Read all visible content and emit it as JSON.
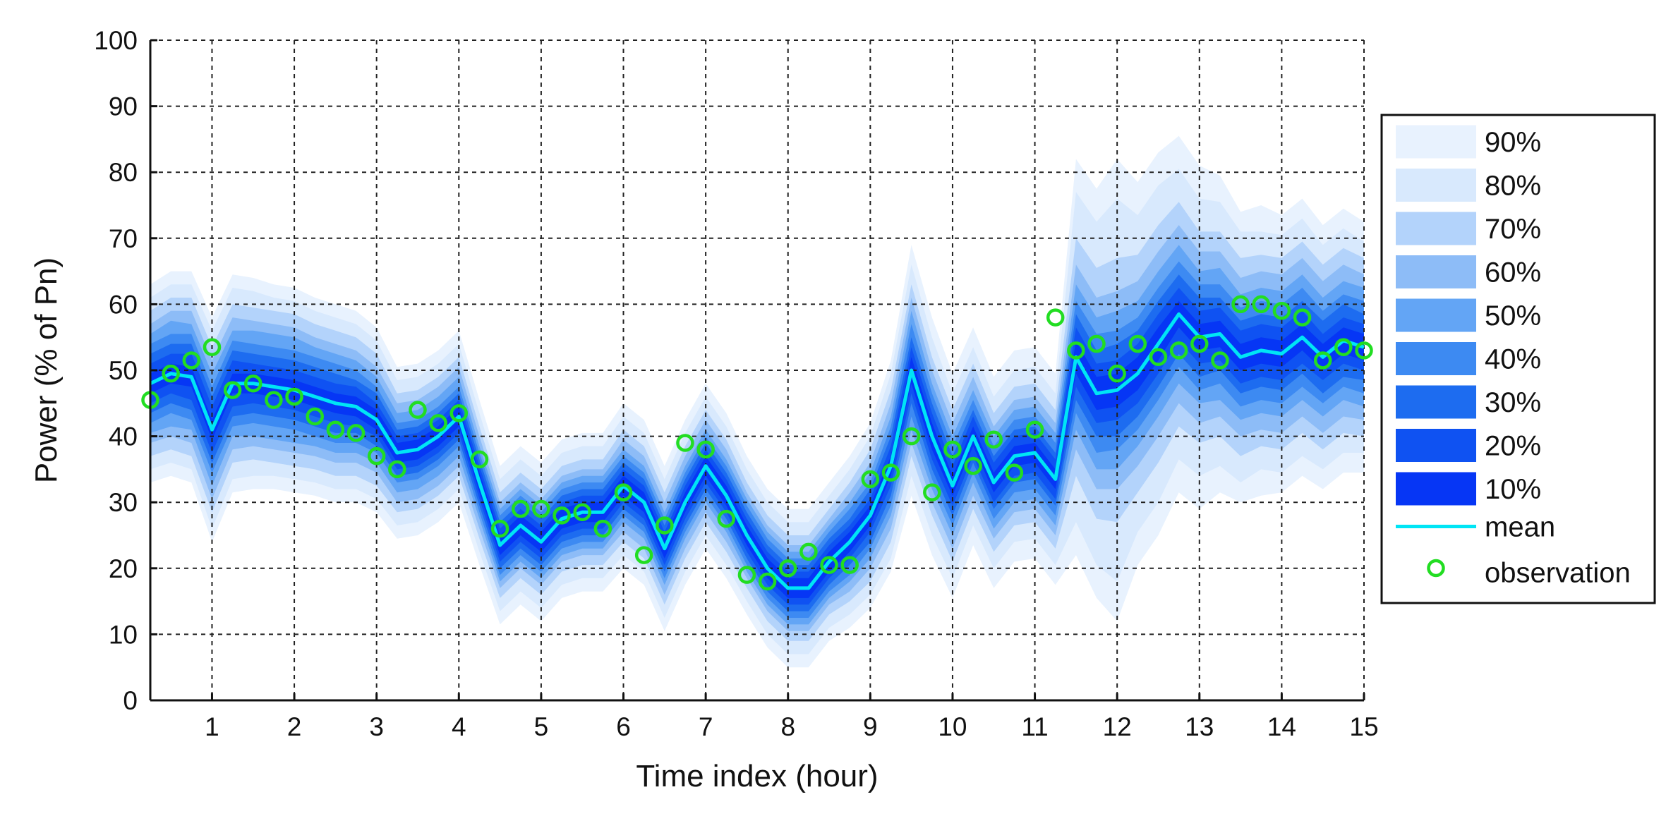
{
  "chart_data": {
    "type": "area",
    "title": "",
    "xlabel": "Time index (hour)",
    "ylabel": "Power (% of Pn)",
    "xlim": [
      0.25,
      15
    ],
    "ylim": [
      0,
      100
    ],
    "x_ticks": [
      1,
      2,
      3,
      4,
      5,
      6,
      7,
      8,
      9,
      10,
      11,
      12,
      13,
      14,
      15
    ],
    "y_ticks": [
      0,
      10,
      20,
      30,
      40,
      50,
      60,
      70,
      80,
      90,
      100
    ],
    "grid": true,
    "legend_position": "right",
    "x": [
      0.25,
      0.5,
      0.75,
      1,
      1.25,
      1.5,
      1.75,
      2,
      2.25,
      2.5,
      2.75,
      3,
      3.25,
      3.5,
      3.75,
      4,
      4.25,
      4.5,
      4.75,
      5,
      5.25,
      5.5,
      5.75,
      6,
      6.25,
      6.5,
      6.75,
      7,
      7.25,
      7.5,
      7.75,
      8,
      8.25,
      8.5,
      8.75,
      9,
      9.25,
      9.5,
      9.75,
      10,
      10.25,
      10.5,
      10.75,
      11,
      11.25,
      11.5,
      11.75,
      12,
      12.25,
      12.5,
      12.75,
      13,
      13.25,
      13.5,
      13.75,
      14,
      14.25,
      14.5,
      14.75,
      15
    ],
    "series": [
      {
        "name": "mean",
        "color": "#00e5f5",
        "values": [
          48,
          49.5,
          49,
          41,
          48,
          48,
          47.5,
          47,
          46,
          45,
          44.5,
          42.5,
          37.5,
          38,
          40,
          43,
          33,
          23.5,
          26.5,
          24,
          27.5,
          28.5,
          28.5,
          32.5,
          30,
          23,
          30,
          35.5,
          31,
          25,
          20,
          17,
          17,
          21,
          24,
          28,
          35.5,
          50,
          40,
          32.5,
          40,
          33,
          37,
          37.5,
          33.5,
          52,
          46.5,
          47,
          49.5,
          54,
          58.5,
          55,
          55.5,
          52,
          53,
          52.5,
          55,
          52,
          54.5,
          53.5
        ]
      },
      {
        "name": "observation",
        "color": "#22dd22",
        "values": [
          45.5,
          49.5,
          51.5,
          53.5,
          47,
          48,
          45.5,
          46,
          43,
          41,
          40.5,
          37,
          35,
          44,
          42,
          43.5,
          36.5,
          26,
          29,
          29,
          28,
          28.5,
          26,
          31.5,
          22,
          26.5,
          39,
          38,
          27.5,
          19,
          18,
          20,
          22.5,
          20.5,
          20.5,
          33.5,
          34.5,
          40,
          31.5,
          38,
          35.5,
          39.5,
          34.5,
          41,
          58,
          53,
          54,
          49.5,
          54,
          52,
          53,
          54,
          51.5,
          60,
          60,
          59,
          58,
          51.5,
          53.5,
          53
        ]
      }
    ],
    "bands": [
      {
        "name": "90%",
        "color": "#e8f2fe",
        "half_width": [
          15,
          15.5,
          16,
          17,
          16.5,
          16,
          15.5,
          15.5,
          15,
          15,
          14.5,
          14,
          13,
          13,
          13,
          13,
          12.5,
          12,
          12,
          12,
          12,
          12,
          12,
          12.5,
          12.5,
          12.5,
          12.5,
          12.5,
          12.5,
          12,
          12,
          12,
          12,
          12,
          13,
          14,
          16,
          19,
          18,
          17,
          16.5,
          16,
          16,
          16,
          16,
          30,
          31,
          35,
          29,
          29,
          27,
          26,
          24,
          22,
          22,
          21,
          21,
          20,
          20,
          19
        ]
      },
      {
        "name": "80%",
        "color": "#d8e9fd",
        "half_width": [
          13,
          13.5,
          14,
          15,
          14.5,
          14,
          13.5,
          13.5,
          13,
          13,
          12.5,
          12,
          11,
          11,
          11,
          11,
          10.5,
          10,
          10,
          10,
          10,
          10,
          10,
          10.5,
          10.5,
          10.5,
          10.5,
          10.5,
          10.5,
          10,
          10,
          10,
          10,
          10,
          11,
          12,
          14,
          16,
          15,
          14,
          13.5,
          13,
          13,
          13,
          13,
          25,
          26,
          29,
          24,
          24,
          22,
          21,
          20,
          19,
          18,
          18,
          18,
          17,
          17,
          16
        ]
      },
      {
        "name": "70%",
        "color": "#b3d3fb",
        "half_width": [
          11,
          11.5,
          12,
          12.5,
          12,
          11.5,
          11.5,
          11.5,
          11,
          11,
          10.5,
          10,
          9,
          9,
          9,
          9,
          8.5,
          8,
          8,
          8,
          8,
          8,
          8,
          8.5,
          8.5,
          8.5,
          8.5,
          8.5,
          8.5,
          8,
          8,
          8,
          8,
          8,
          9,
          10,
          11.5,
          13,
          12,
          11.5,
          11,
          10.5,
          10.5,
          10.5,
          10.5,
          18,
          19,
          20,
          18,
          18,
          17,
          16,
          15.5,
          15,
          14.5,
          14.5,
          14.5,
          14,
          14,
          13.5
        ]
      },
      {
        "name": "60%",
        "color": "#8dbcf7",
        "half_width": [
          9,
          9.5,
          10,
          10.5,
          10,
          9.5,
          9.5,
          9.5,
          9,
          9,
          8.5,
          8,
          7.5,
          7.5,
          7.5,
          7.5,
          7,
          6.5,
          6.5,
          6.5,
          6.5,
          6.5,
          6.5,
          7,
          7,
          7,
          7,
          7,
          7,
          6.5,
          6.5,
          6.5,
          6.5,
          6.5,
          7.5,
          8,
          9.5,
          11,
          10,
          9.5,
          9,
          8.5,
          8.5,
          8.5,
          8.5,
          14,
          14.5,
          15,
          14,
          14,
          13.5,
          13,
          12.5,
          12,
          12,
          12,
          12,
          11.5,
          11.5,
          11
        ]
      },
      {
        "name": "50%",
        "color": "#63a5f5",
        "half_width": [
          7.5,
          8,
          8,
          8.5,
          8,
          8,
          8,
          8,
          7.5,
          7.5,
          7,
          6.5,
          6,
          6,
          6,
          6,
          5.5,
          5.5,
          5.5,
          5.5,
          5.5,
          5.5,
          5.5,
          5.5,
          5.5,
          5.5,
          5.5,
          5.5,
          5.5,
          5.5,
          5.5,
          5.5,
          5.5,
          5.5,
          6,
          6.5,
          7.5,
          9,
          8,
          7.5,
          7,
          7,
          7,
          7,
          7,
          11,
          11.5,
          12,
          11,
          11,
          10.5,
          10,
          10,
          9.5,
          9.5,
          9.5,
          9.5,
          9,
          9,
          9
        ]
      },
      {
        "name": "40%",
        "color": "#3d8af2",
        "half_width": [
          6,
          6,
          6.5,
          6.5,
          6.5,
          6,
          6,
          6,
          6,
          6,
          5.5,
          5,
          4.5,
          4.5,
          4.5,
          4.5,
          4.5,
          4.5,
          4.5,
          4.5,
          4.5,
          4.5,
          4.5,
          4.5,
          4.5,
          4.5,
          4.5,
          4.5,
          4.5,
          4.5,
          4.5,
          4.5,
          4.5,
          4.5,
          5,
          5,
          6,
          7,
          6.5,
          6,
          5.5,
          5.5,
          5.5,
          5.5,
          5.5,
          8.5,
          9,
          9,
          8.5,
          8.5,
          8,
          8,
          7.5,
          7.5,
          7.5,
          7.5,
          7.5,
          7,
          7,
          7
        ]
      },
      {
        "name": "30%",
        "color": "#1d6cf0",
        "half_width": [
          4.5,
          4.5,
          5,
          5,
          5,
          4.5,
          4.5,
          4.5,
          4.5,
          4.5,
          4,
          4,
          3.5,
          3.5,
          3.5,
          3.5,
          3.5,
          3.5,
          3.5,
          3.5,
          3.5,
          3.5,
          3.5,
          3.5,
          3.5,
          3.5,
          3.5,
          3.5,
          3.5,
          3.5,
          3.5,
          3.5,
          3.5,
          3.5,
          3.5,
          4,
          4.5,
          5,
          5,
          4.5,
          4,
          4,
          4,
          4,
          4,
          6.5,
          6.5,
          7,
          6.5,
          6.5,
          6,
          6,
          5.5,
          5.5,
          5.5,
          5.5,
          5.5,
          5.5,
          5.5,
          5
        ]
      },
      {
        "name": "20%",
        "color": "#0f52f2",
        "half_width": [
          3,
          3,
          3.5,
          3.5,
          3.5,
          3,
          3,
          3,
          3,
          3,
          3,
          2.5,
          2.5,
          2.5,
          2.5,
          2.5,
          2.5,
          2.5,
          2.5,
          2.5,
          2.5,
          2.5,
          2.5,
          2.5,
          2.5,
          2.5,
          2.5,
          2.5,
          2.5,
          2.5,
          2.5,
          2.5,
          2.5,
          2.5,
          2.5,
          2.5,
          3,
          3.5,
          3.5,
          3,
          3,
          3,
          3,
          3,
          3,
          4.5,
          4.5,
          4.5,
          4.5,
          4.5,
          4,
          4,
          4,
          4,
          4,
          4,
          4,
          3.5,
          3.5,
          3.5
        ]
      },
      {
        "name": "10%",
        "color": "#0636f5",
        "half_width": [
          1.5,
          1.5,
          1.5,
          1.5,
          1.5,
          1.5,
          1.5,
          1.5,
          1.5,
          1.5,
          1.5,
          1.5,
          1.5,
          1.5,
          1.5,
          1.5,
          1.5,
          1.5,
          1.5,
          1.5,
          1.5,
          1.5,
          1.5,
          1.5,
          1.5,
          1.5,
          1.5,
          1.5,
          1.5,
          1.5,
          1.5,
          1.5,
          1.5,
          1.5,
          1.5,
          1.5,
          1.5,
          2,
          2,
          1.5,
          1.5,
          1.5,
          1.5,
          1.5,
          1.5,
          2.5,
          2.5,
          2.5,
          2.5,
          2.5,
          2,
          2,
          2,
          2,
          2,
          2,
          2,
          2,
          2,
          2
        ]
      }
    ]
  }
}
